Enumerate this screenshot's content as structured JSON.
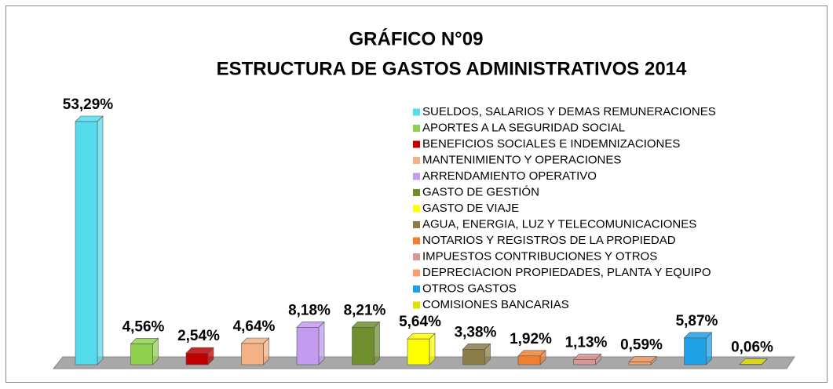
{
  "chart_data": {
    "type": "bar",
    "title": "GRÁFICO N°09",
    "subtitle": "ESTRUCTURA  DE GASTOS ADMINISTRATIVOS 2014",
    "series": [
      {
        "name": "SUELDOS, SALARIOS Y DEMAS REMUNERACIONES",
        "color": "#55dcec",
        "values": [
          53.29
        ],
        "value_labels": [
          "53,29%"
        ]
      },
      {
        "name": "APORTES A LA SEGURIDAD SOCIAL",
        "color": "#8fd14f",
        "values": [
          4.56
        ],
        "value_labels": [
          "4,56%"
        ]
      },
      {
        "name": "BENEFICIOS SOCIALES E INDEMNIZACIONES",
        "color": "#c00000",
        "values": [
          2.54
        ],
        "value_labels": [
          "2,54%"
        ]
      },
      {
        "name": "MANTENIMIENTO Y OPERACIONES",
        "color": "#f4b183",
        "values": [
          4.64
        ],
        "value_labels": [
          "4,64%"
        ]
      },
      {
        "name": "ARRENDAMIENTO OPERATIVO",
        "color": "#c39bef",
        "values": [
          8.18
        ],
        "value_labels": [
          "8,18%"
        ]
      },
      {
        "name": "GASTO DE GESTIÓN",
        "color": "#6f8f2f",
        "values": [
          8.21
        ],
        "value_labels": [
          "8,21%"
        ]
      },
      {
        "name": "GASTO DE VIAJE",
        "color": "#ffff00",
        "values": [
          5.64
        ],
        "value_labels": [
          "5,64%"
        ]
      },
      {
        "name": "AGUA, ENERGIA, LUZ Y TELECOMUNICACIONES",
        "color": "#8b7d48",
        "values": [
          3.38
        ],
        "value_labels": [
          "3,38%"
        ]
      },
      {
        "name": "NOTARIOS Y REGISTROS DE LA PROPIEDAD",
        "color": "#f08030",
        "values": [
          1.92
        ],
        "value_labels": [
          "1,92%"
        ]
      },
      {
        "name": "IMPUESTOS CONTRIBUCIONES Y OTROS",
        "color": "#d99694",
        "values": [
          1.13
        ],
        "value_labels": [
          "1,13%"
        ]
      },
      {
        "name": "DEPRECIACION PROPIEDADES, PLANTA Y EQUIPO",
        "color": "#f7a06a",
        "values": [
          0.59
        ],
        "value_labels": [
          "0,59%"
        ]
      },
      {
        "name": "OTROS GASTOS",
        "color": "#1ea0e6",
        "values": [
          5.87
        ],
        "value_labels": [
          "5,87%"
        ]
      },
      {
        "name": "COMISIONES BANCARIAS",
        "color": "#e0e000",
        "values": [
          0.06
        ],
        "value_labels": [
          "0,06%"
        ]
      }
    ]
  }
}
